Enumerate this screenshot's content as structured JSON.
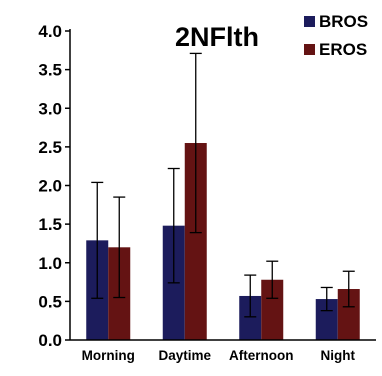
{
  "chart_data": {
    "type": "bar",
    "title": "2NFlth",
    "categories": [
      "Morning",
      "Daytime",
      "Afternoon",
      "Night"
    ],
    "series": [
      {
        "name": "BROS",
        "color": "#1c1c5c",
        "values": [
          1.29,
          1.48,
          0.57,
          0.53
        ],
        "errors": [
          0.75,
          0.74,
          0.27,
          0.15
        ]
      },
      {
        "name": "EROS",
        "color": "#641313",
        "values": [
          1.2,
          2.55,
          0.78,
          0.66
        ],
        "errors": [
          0.65,
          1.16,
          0.24,
          0.23
        ]
      }
    ],
    "ylim": [
      0,
      4
    ],
    "yticks": [
      "0.0",
      "0.5",
      "1.0",
      "1.5",
      "2.0",
      "2.5",
      "3.0",
      "3.5",
      "4.0"
    ],
    "xlabel": "",
    "ylabel": "",
    "legend_position": "top-right",
    "grid": false
  }
}
